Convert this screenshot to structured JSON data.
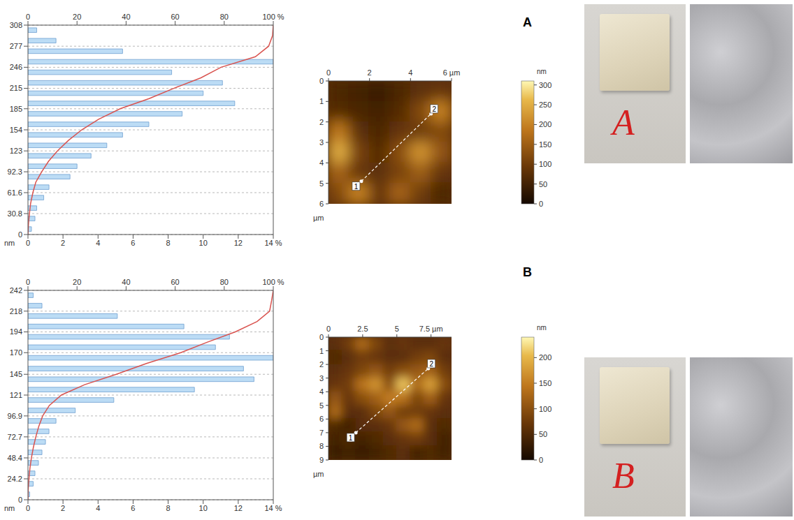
{
  "chart_data": [
    {
      "type": "histogram",
      "orientation": "horizontal",
      "grid": true,
      "color": "#bcdcf5",
      "bins": [
        0,
        15.4,
        30.8,
        46.2,
        61.6,
        77,
        92.3,
        107.8,
        123,
        138.5,
        154,
        169.5,
        185,
        200,
        215,
        230.5,
        246,
        261.5,
        277,
        292.5,
        308
      ],
      "values": [
        0.2,
        0.4,
        0.5,
        0.9,
        1.2,
        2.4,
        2.8,
        3.6,
        4.5,
        5.4,
        6.9,
        8.8,
        11.8,
        10.0,
        11.1,
        8.2,
        14.0,
        5.4,
        1.6,
        0.5
      ],
      "cumulative": {
        "color": "#d9534f",
        "values": [
          0,
          0.2,
          0.6,
          1.1,
          2.0,
          3.2,
          5.6,
          8.4,
          12.0,
          16.5,
          21.9,
          28.8,
          37.6,
          49.4,
          59.4,
          70.5,
          78.7,
          92.7,
          98.1,
          99.7,
          100
        ]
      },
      "xlim": [
        0,
        14
      ],
      "xticks": [
        0,
        2,
        4,
        6,
        8,
        10,
        12,
        {
          "value": 14,
          "label": "14 %"
        }
      ],
      "x2lim": [
        0,
        100
      ],
      "x2ticks": [
        0,
        20,
        40,
        60,
        80,
        {
          "value": 100,
          "label": "100 %"
        }
      ],
      "ylim": [
        0,
        308
      ],
      "yticks": [
        0,
        30.8,
        61.6,
        92.3,
        123,
        154,
        185,
        215,
        246,
        277,
        308
      ],
      "y_label": "nm"
    },
    {
      "type": "histogram",
      "orientation": "horizontal",
      "grid": true,
      "color": "#bcdcf5",
      "bins": [
        0,
        12.1,
        24.2,
        36.3,
        48.4,
        60.5,
        72.7,
        84.8,
        96.9,
        109,
        121,
        133,
        145,
        157.5,
        170,
        182,
        194,
        206,
        218,
        230,
        242
      ],
      "values": [
        0.1,
        0.3,
        0.4,
        0.6,
        0.8,
        1.0,
        1.2,
        1.6,
        2.7,
        4.9,
        9.5,
        12.9,
        12.3,
        14.0,
        10.7,
        11.5,
        8.9,
        5.1,
        0.8,
        0.3
      ],
      "cumulative": {
        "color": "#d9534f",
        "values": [
          0,
          0.1,
          0.4,
          0.8,
          1.4,
          2.2,
          3.2,
          4.4,
          6.0,
          8.7,
          13.6,
          23.1,
          36.0,
          48.3,
          62.3,
          73.0,
          84.5,
          93.4,
          98.5,
          99.3,
          100
        ]
      },
      "xlim": [
        0,
        14
      ],
      "xticks": [
        0,
        2,
        4,
        6,
        8,
        10,
        12,
        {
          "value": 14,
          "label": "14 %"
        }
      ],
      "x2lim": [
        0,
        100
      ],
      "x2ticks": [
        0,
        20,
        40,
        60,
        80,
        {
          "value": 100,
          "label": "100 %"
        }
      ],
      "ylim": [
        0,
        242
      ],
      "yticks": [
        0,
        24.2,
        48.4,
        72.7,
        96.9,
        121,
        145,
        170,
        194,
        218,
        242
      ],
      "y_label": "nm"
    }
  ],
  "afm": [
    {
      "type": "heatmap",
      "xlim": [
        0,
        6
      ],
      "xticks": [
        0,
        2,
        4,
        {
          "value": 6,
          "label": "6 µm"
        }
      ],
      "ylim": [
        0,
        6
      ],
      "yticks": [
        0,
        1,
        2,
        3,
        4,
        5,
        6
      ],
      "y_label": "µm",
      "heights": [
        [
          60,
          50,
          40,
          60,
          80,
          90
        ],
        [
          70,
          60,
          50,
          70,
          120,
          200
        ],
        [
          190,
          80,
          60,
          90,
          100,
          120
        ],
        [
          250,
          110,
          70,
          130,
          220,
          140
        ],
        [
          160,
          90,
          80,
          110,
          150,
          90
        ],
        [
          120,
          200,
          90,
          160,
          100,
          60
        ]
      ],
      "profile": [
        {
          "x": 1.6,
          "y": 4.9,
          "label": "1"
        },
        {
          "x": 5,
          "y": 1.6,
          "label": "2"
        }
      ],
      "colorbar": {
        "range": [
          0,
          310
        ],
        "ticks": [
          0,
          50,
          100,
          150,
          200,
          250,
          300
        ],
        "label": "nm"
      }
    },
    {
      "type": "heatmap",
      "xlim": [
        0,
        9
      ],
      "xticks": [
        0,
        2.5,
        5,
        {
          "value": 7.5,
          "label": "7.5 µm"
        }
      ],
      "ylim": [
        0,
        9
      ],
      "yticks": [
        0,
        1,
        2,
        3,
        4,
        5,
        6,
        7,
        8,
        9
      ],
      "y_label": "µm",
      "heights": [
        [
          60,
          80,
          130,
          90,
          60,
          70,
          60,
          60,
          70
        ],
        [
          50,
          60,
          80,
          70,
          60,
          60,
          80,
          90,
          60
        ],
        [
          60,
          70,
          90,
          110,
          80,
          100,
          110,
          120,
          80
        ],
        [
          70,
          80,
          140,
          170,
          100,
          210,
          130,
          180,
          100
        ],
        [
          110,
          70,
          100,
          120,
          150,
          140,
          90,
          120,
          70
        ],
        [
          130,
          60,
          60,
          90,
          110,
          80,
          80,
          70,
          60
        ],
        [
          50,
          40,
          60,
          60,
          70,
          110,
          130,
          60,
          50
        ],
        [
          40,
          50,
          40,
          50,
          60,
          70,
          80,
          60,
          40
        ],
        [
          30,
          40,
          30,
          40,
          50,
          60,
          40,
          50,
          40
        ]
      ],
      "profile": [
        {
          "x": 2,
          "y": 7,
          "label": "1"
        },
        {
          "x": 7.3,
          "y": 2.3,
          "label": "2"
        }
      ],
      "colorbar": {
        "range": [
          0,
          240
        ],
        "ticks": [
          0,
          50,
          100,
          150,
          200
        ],
        "label": "nm"
      }
    }
  ],
  "panels": [
    {
      "letter": "A",
      "photo_label": "A"
    },
    {
      "letter": "B",
      "photo_label": "B"
    }
  ]
}
